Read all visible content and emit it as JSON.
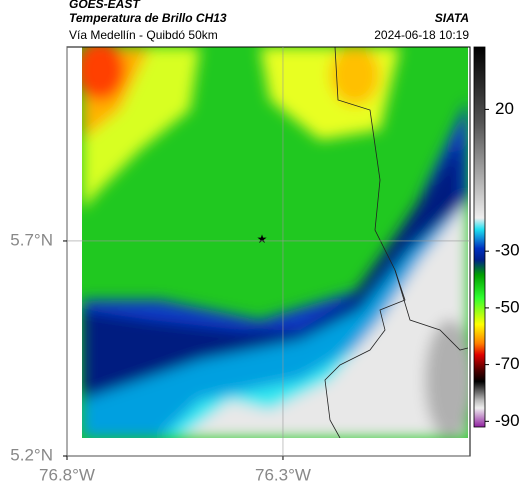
{
  "header": {
    "satellite": "GOES-EAST",
    "product": "Temperatura de Brillo CH13",
    "source": "SIATA",
    "route": "Vía Medellín - Quibdó 50km",
    "datetime": "2024-06-18 10:19"
  },
  "map": {
    "xlim": [
      -76.8,
      -75.867
    ],
    "ylim": [
      5.2,
      6.151
    ],
    "xticks": [
      {
        "value": -76.8,
        "label": "76.8°W"
      },
      {
        "value": -76.3,
        "label": "76.3°W"
      }
    ],
    "yticks": [
      {
        "value": 5.2,
        "label": "5.2°N"
      },
      {
        "value": 5.7,
        "label": "5.7°N"
      }
    ],
    "grid": true
  },
  "colorbar": {
    "clim": [
      -92,
      42
    ],
    "ticks": [
      20,
      -30,
      -50,
      -70,
      -90
    ]
  }
}
